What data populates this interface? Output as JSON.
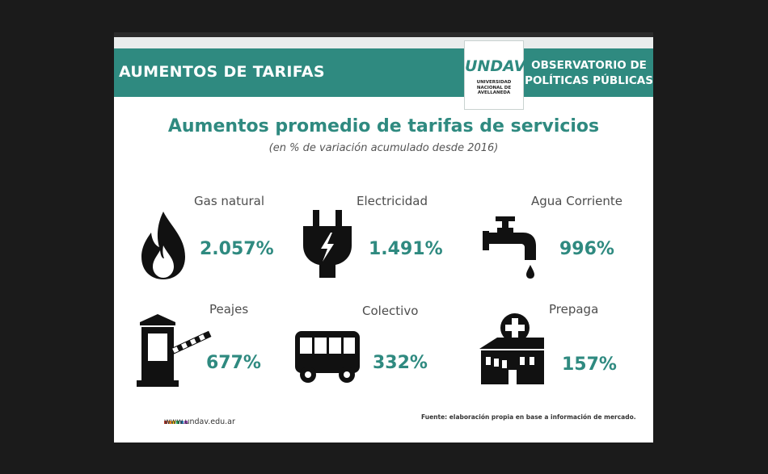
{
  "header": {
    "title": "AUMENTOS DE TARIFAS",
    "logo": "UNDAV",
    "logo_subtitle": [
      "UNIVERSIDAD",
      "NACIONAL DE",
      "AVELLANEDA"
    ],
    "observatory_line1": "OBSERVATORIO DE",
    "observatory_line2": "POLÍTICAS PÚBLICAS"
  },
  "title": "Aumentos promedio de tarifas de servicios",
  "subtitle": "(en % de variación acumulado desde 2016)",
  "services": [
    {
      "label": "Gas natural",
      "value": "2.057%",
      "icon": "flame-icon"
    },
    {
      "label": "Electricidad",
      "value": "1.491%",
      "icon": "plug-icon"
    },
    {
      "label": "Agua Corriente",
      "value": "996%",
      "icon": "faucet-icon"
    },
    {
      "label": "Peajes",
      "value": "677%",
      "icon": "toll-barrier-icon"
    },
    {
      "label": "Colectivo",
      "value": "332%",
      "icon": "bus-icon"
    },
    {
      "label": "Prepaga",
      "value": "157%",
      "icon": "hospital-icon"
    }
  ],
  "footer": {
    "url": "www.undav.edu.ar",
    "source": "Fuente: elaboración propia en base a información de mercado.",
    "brand_colors": [
      "#c0392b",
      "#e67e22",
      "#f1c40f",
      "#27ae60",
      "#2980b9",
      "#8e44ad"
    ]
  },
  "colors": {
    "accent": "#2f8a80",
    "background": "#ffffff"
  }
}
